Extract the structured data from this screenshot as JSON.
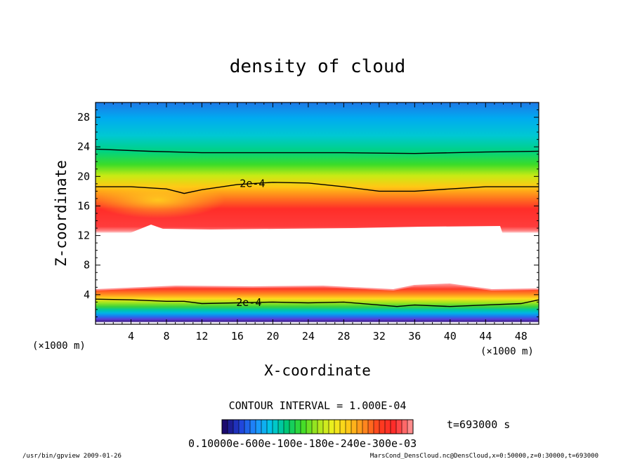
{
  "chart_data": {
    "type": "heatmap",
    "title": "density of cloud",
    "xlabel": "X-coordinate",
    "ylabel": "Z-coordinate",
    "x_unit": "(×1000 m)",
    "y_unit": "(×1000 m)",
    "xlim": [
      0,
      50
    ],
    "ylim": [
      0,
      30
    ],
    "x_ticks": [
      4,
      8,
      12,
      16,
      20,
      24,
      28,
      32,
      36,
      40,
      44,
      48
    ],
    "y_ticks": [
      4,
      8,
      12,
      16,
      20,
      24,
      28
    ],
    "grid": false,
    "colormap": [
      "#1b0a6e",
      "#2040d8",
      "#1e90ff",
      "#00c8e6",
      "#00c878",
      "#3cdc28",
      "#a8e61e",
      "#f0f01e",
      "#ffc818",
      "#ff8c1e",
      "#ff3c1e",
      "#ff2a2a",
      "#ff8c8c"
    ],
    "contour_interval_text": "CONTOUR INTERVAL = 1.000E-04",
    "time_text": "t=693000 s",
    "colorbar_labels_text": "0.10000e-600e-100e-180e-240e-300e-03",
    "contours": [
      {
        "label": "",
        "points": [
          [
            0,
            23.7
          ],
          [
            6,
            23.4
          ],
          [
            12,
            23.2
          ],
          [
            20,
            23.2
          ],
          [
            28,
            23.2
          ],
          [
            36,
            23.1
          ],
          [
            44,
            23.3
          ],
          [
            50,
            23.4
          ]
        ]
      },
      {
        "label": "2e-4",
        "label_x": 17.7,
        "points": [
          [
            0,
            18.6
          ],
          [
            4,
            18.6
          ],
          [
            8,
            18.3
          ],
          [
            10,
            17.7
          ],
          [
            12,
            18.2
          ],
          [
            16,
            18.9
          ],
          [
            20,
            19.2
          ],
          [
            24,
            19.1
          ],
          [
            28,
            18.6
          ],
          [
            32,
            18.0
          ],
          [
            36,
            18.0
          ],
          [
            40,
            18.3
          ],
          [
            44,
            18.6
          ],
          [
            50,
            18.6
          ]
        ]
      },
      {
        "label": "2e-4",
        "label_x": 17.3,
        "points": [
          [
            0,
            3.4
          ],
          [
            4,
            3.3
          ],
          [
            8,
            3.1
          ],
          [
            10,
            3.1
          ],
          [
            12,
            2.8
          ],
          [
            16,
            2.9
          ],
          [
            20,
            3.0
          ],
          [
            24,
            2.9
          ],
          [
            28,
            3.0
          ],
          [
            32,
            2.6
          ],
          [
            34,
            2.4
          ],
          [
            36,
            2.6
          ],
          [
            40,
            2.4
          ],
          [
            44,
            2.6
          ],
          [
            48,
            2.8
          ],
          [
            50,
            3.3
          ]
        ]
      }
    ]
  },
  "footer": {
    "left": "/usr/bin/gpview   2009-01-26",
    "right": "MarsCond_DensCloud.nc@DensCloud,x=0:50000,z=0:30000,t=693000"
  }
}
